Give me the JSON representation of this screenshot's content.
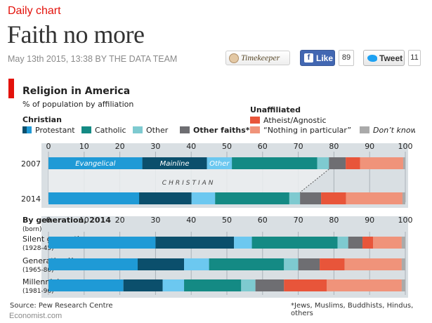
{
  "page": {
    "section_label": "Daily chart",
    "headline": "Faith no more",
    "byline": "May 13th 2015, 13:38 BY THE DATA TEAM",
    "timekeeper_label": "Timekeeper",
    "like_label": "Like",
    "like_count": "89",
    "tweet_label": "Tweet",
    "tweet_count": "11",
    "site": "Economist.com"
  },
  "chart_data": {
    "type": "bar",
    "orientation": "horizontal",
    "stacked": true,
    "title": "Religion in America",
    "subtitle": "% of population by affiliation",
    "xlim": [
      0,
      100
    ],
    "x_ticks": [
      0,
      10,
      20,
      30,
      40,
      50,
      60,
      70,
      80,
      90,
      100
    ],
    "legend": {
      "christian_heading": "Christian",
      "unaffiliated_heading": "Unaffiliated",
      "items": [
        {
          "label": "Protestant",
          "color": "#1f9ad6"
        },
        {
          "label": "Catholic",
          "color": "#148a84"
        },
        {
          "label": "Other",
          "color": "#7ecad0"
        },
        {
          "label": "Other faiths*",
          "color": "#6e6e72"
        },
        {
          "label": "Atheist/Agnostic",
          "color": "#e8553a"
        },
        {
          "label": "“Nothing in particular”",
          "color": "#f0937a"
        },
        {
          "label": "Don’t know",
          "color": "#aaaaaa"
        }
      ]
    },
    "segment_order": [
      "Evangelical",
      "Mainline",
      "Other Christian",
      "Catholic",
      "Other Christian (2)",
      "Other faiths*",
      "Atheist/Agnostic",
      "Nothing in particular",
      "Don't know"
    ],
    "segment_colors": [
      "#1f9ad6",
      "#0b4f6c",
      "#6cc8f0",
      "#148a84",
      "#7ecad0",
      "#6e6e72",
      "#e8553a",
      "#f0937a",
      "#aaaaaa"
    ],
    "panels": [
      {
        "rows": [
          {
            "label": "2007",
            "sublabel": "",
            "values": [
              26.3,
              18.1,
              7.0,
              23.9,
              3.3,
              4.7,
              4.0,
              12.1,
              0.6
            ]
          },
          {
            "label": "2014",
            "sublabel": "",
            "values": [
              25.4,
              14.7,
              6.6,
              20.8,
              3.0,
              5.9,
              7.0,
              15.8,
              0.8
            ]
          }
        ],
        "segment_labels": [
          "Evangelical",
          "Mainline",
          "Other"
        ],
        "band_label": "CHRISTIAN"
      },
      {
        "heading": "By generation, 2014",
        "heading_sub": "(born)",
        "rows": [
          {
            "label": "Silent generation",
            "sublabel": "(1928-45)",
            "values": [
              30.0,
              22.0,
              5.0,
              24.0,
              3.0,
              4.0,
              3.0,
              8.0,
              1.0
            ]
          },
          {
            "label": "Generation X",
            "sublabel": "(1965-80)",
            "values": [
              25.0,
              13.0,
              7.0,
              21.0,
              4.0,
              6.0,
              7.0,
              16.0,
              1.0
            ]
          },
          {
            "label": "Millennials",
            "sublabel": "(1981-96)",
            "values": [
              21.0,
              11.0,
              6.0,
              16.0,
              4.0,
              8.0,
              12.0,
              21.0,
              1.0
            ]
          }
        ]
      }
    ],
    "source": "Source: Pew Research Centre",
    "footnote": "*Jews, Muslims, Buddhists, Hindus, others"
  }
}
